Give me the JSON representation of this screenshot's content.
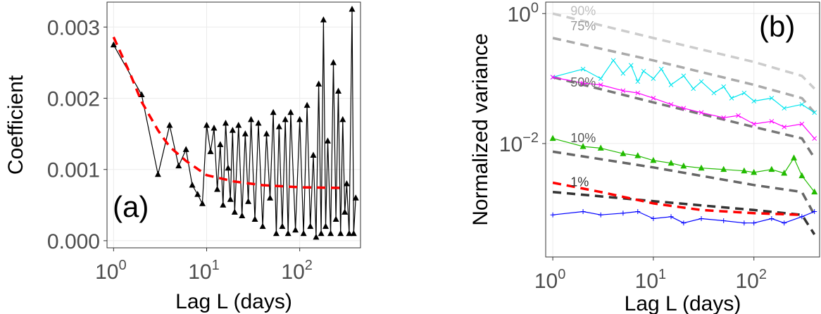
{
  "chart_data": [
    {
      "id": "a",
      "type": "line",
      "panel_label": "(a)",
      "xlabel": "Lag L (days)",
      "ylabel": "Coefficient",
      "x_scale": "log",
      "xlim": [
        0.85,
        450
      ],
      "ylim": [
        -0.0001,
        0.00335
      ],
      "x_ticks": [
        {
          "value": 1,
          "base": "10",
          "exp": "0"
        },
        {
          "value": 10,
          "base": "10",
          "exp": "1"
        },
        {
          "value": 100,
          "base": "10",
          "exp": "2"
        }
      ],
      "y_ticks": [
        {
          "value": 0.0,
          "label": "0.000"
        },
        {
          "value": 0.001,
          "label": "0.001"
        },
        {
          "value": 0.002,
          "label": "0.002"
        },
        {
          "value": 0.003,
          "label": "0.003"
        }
      ],
      "grid": true,
      "series": [
        {
          "style": "line+triangle",
          "color": "#000000",
          "points": [
            [
              1,
              0.00275
            ],
            [
              2,
              0.00205
            ],
            [
              3,
              0.00093
            ],
            [
              4,
              0.00162
            ],
            [
              5,
              0.00105
            ],
            [
              6,
              0.00128
            ],
            [
              7,
              0.00078
            ],
            [
              8,
              0.00065
            ],
            [
              9,
              0.00052
            ],
            [
              10,
              0.00162
            ],
            [
              11,
              0.00125
            ],
            [
              12,
              0.00158
            ],
            [
              13,
              0.00072
            ],
            [
              14,
              0.00135
            ],
            [
              15,
              0.0005
            ],
            [
              16,
              0.00165
            ],
            [
              17,
              0.00102
            ],
            [
              18,
              0.00058
            ],
            [
              19,
              0.00155
            ],
            [
              20,
              0.0004
            ],
            [
              22,
              0.00162
            ],
            [
              24,
              0.00035
            ],
            [
              26,
              0.0015
            ],
            [
              28,
              0.00055
            ],
            [
              30,
              0.0017
            ],
            [
              33,
              0.0003
            ],
            [
              36,
              0.00165
            ],
            [
              40,
              0.0002
            ],
            [
              44,
              0.0015
            ],
            [
              48,
              0.0006
            ],
            [
              52,
              0.0018
            ],
            [
              56,
              0.0001
            ],
            [
              60,
              0.0016
            ],
            [
              65,
              0.0002
            ],
            [
              70,
              0.0017
            ],
            [
              75,
              0.0001
            ],
            [
              80,
              0.0018
            ],
            [
              90,
              0.00015
            ],
            [
              100,
              0.0017
            ],
            [
              110,
              0.0001
            ],
            [
              120,
              0.0019
            ],
            [
              130,
              0.0002
            ],
            [
              140,
              0.0012
            ],
            [
              150,
              5e-05
            ],
            [
              160,
              0.0022
            ],
            [
              170,
              0.0001
            ],
            [
              180,
              0.0031
            ],
            [
              190,
              0.0002
            ],
            [
              200,
              0.0014
            ],
            [
              215,
              0.0001
            ],
            [
              230,
              0.0025
            ],
            [
              245,
              0.0003
            ],
            [
              260,
              0.0021
            ],
            [
              275,
              0.0001
            ],
            [
              290,
              0.0017
            ],
            [
              305,
              0.0004
            ],
            [
              320,
              0.0008
            ],
            [
              340,
              0.0001
            ],
            [
              365,
              0.00325
            ],
            [
              380,
              0.0001
            ],
            [
              400,
              0.0006
            ]
          ]
        },
        {
          "style": "dashed",
          "color": "#ff0000",
          "points": [
            [
              1,
              0.00286
            ],
            [
              1.5,
              0.00235
            ],
            [
              2,
              0.00195
            ],
            [
              3,
              0.00155
            ],
            [
              4,
              0.00132
            ],
            [
              6,
              0.00112
            ],
            [
              10,
              0.00092
            ],
            [
              20,
              0.00083
            ],
            [
              40,
              0.00078
            ],
            [
              100,
              0.00075
            ],
            [
              300,
              0.00074
            ]
          ]
        }
      ]
    },
    {
      "id": "b",
      "type": "line",
      "panel_label": "(b)",
      "xlabel": "Lag L (days)",
      "ylabel": "Normalized variance",
      "x_scale": "log",
      "y_scale": "log",
      "xlim": [
        0.85,
        450
      ],
      "ylim": [
        0.00018,
        1.5
      ],
      "x_ticks": [
        {
          "value": 1,
          "base": "10",
          "exp": "0"
        },
        {
          "value": 10,
          "base": "10",
          "exp": "1"
        },
        {
          "value": 100,
          "base": "10",
          "exp": "2"
        }
      ],
      "y_ticks": [
        {
          "value": 1,
          "base": "10",
          "exp": "0"
        },
        {
          "value": 0.01,
          "base": "10",
          "exp": "−2"
        }
      ],
      "grid": true,
      "quantile_labels": [
        {
          "text": "90%",
          "x": 1.5,
          "y": 0.95,
          "color": "#bfbfbf"
        },
        {
          "text": "75%",
          "x": 1.5,
          "y": 0.55,
          "color": "#999999"
        },
        {
          "text": "50%",
          "x": 1.5,
          "y": 0.075,
          "color": "#666666"
        },
        {
          "text": "10%",
          "x": 1.5,
          "y": 0.0105,
          "color": "#555555"
        },
        {
          "text": "1%",
          "x": 1.5,
          "y": 0.0022,
          "color": "#333333"
        }
      ],
      "series": [
        {
          "style": "dashed",
          "color": "#cccccc",
          "points": [
            [
              1,
              1.0
            ],
            [
              10,
              0.42
            ],
            [
              100,
              0.18
            ],
            [
              300,
              0.11
            ],
            [
              400,
              0.07
            ]
          ]
        },
        {
          "style": "dashed",
          "color": "#aaaaaa",
          "points": [
            [
              1,
              0.42
            ],
            [
              10,
              0.19
            ],
            [
              100,
              0.08
            ],
            [
              300,
              0.05
            ],
            [
              400,
              0.03
            ]
          ]
        },
        {
          "style": "dashed",
          "color": "#777777",
          "points": [
            [
              1,
              0.105
            ],
            [
              10,
              0.043
            ],
            [
              100,
              0.018
            ],
            [
              300,
              0.012
            ],
            [
              400,
              0.006
            ]
          ]
        },
        {
          "style": "dashed",
          "color": "#666666",
          "points": [
            [
              1,
              0.0075
            ],
            [
              10,
              0.0043
            ],
            [
              100,
              0.0023
            ],
            [
              300,
              0.0018
            ],
            [
              400,
              0.0008
            ]
          ]
        },
        {
          "style": "dashed",
          "color": "#333333",
          "points": [
            [
              1,
              0.0018
            ],
            [
              10,
              0.0013
            ],
            [
              100,
              0.00095
            ],
            [
              300,
              0.0008
            ],
            [
              400,
              0.0004
            ]
          ]
        },
        {
          "style": "line+x",
          "color": "#00e5ee",
          "points": [
            [
              1,
              0.105
            ],
            [
              2,
              0.14
            ],
            [
              3,
              0.1
            ],
            [
              4,
              0.19
            ],
            [
              5,
              0.12
            ],
            [
              6,
              0.16
            ],
            [
              7,
              0.09
            ],
            [
              8,
              0.13
            ],
            [
              10,
              0.1
            ],
            [
              12,
              0.14
            ],
            [
              15,
              0.08
            ],
            [
              20,
              0.11
            ],
            [
              25,
              0.07
            ],
            [
              30,
              0.09
            ],
            [
              40,
              0.06
            ],
            [
              50,
              0.075
            ],
            [
              60,
              0.05
            ],
            [
              80,
              0.06
            ],
            [
              100,
              0.045
            ],
            [
              150,
              0.05
            ],
            [
              200,
              0.035
            ],
            [
              300,
              0.04
            ],
            [
              400,
              0.03
            ]
          ]
        },
        {
          "style": "line+x",
          "color": "#ff00ff",
          "points": [
            [
              1,
              0.105
            ],
            [
              2,
              0.085
            ],
            [
              3,
              0.08
            ],
            [
              5,
              0.065
            ],
            [
              7,
              0.06
            ],
            [
              10,
              0.05
            ],
            [
              15,
              0.04
            ],
            [
              20,
              0.035
            ],
            [
              30,
              0.03
            ],
            [
              50,
              0.025
            ],
            [
              70,
              0.027
            ],
            [
              100,
              0.02
            ],
            [
              150,
              0.022
            ],
            [
              200,
              0.018
            ],
            [
              300,
              0.02
            ],
            [
              400,
              0.012
            ]
          ]
        },
        {
          "style": "line+triangle",
          "color": "#22bb00",
          "points": [
            [
              1,
              0.012
            ],
            [
              2,
              0.009
            ],
            [
              3,
              0.0085
            ],
            [
              5,
              0.007
            ],
            [
              7,
              0.0065
            ],
            [
              10,
              0.0055
            ],
            [
              15,
              0.005
            ],
            [
              20,
              0.0045
            ],
            [
              30,
              0.0042
            ],
            [
              50,
              0.004
            ],
            [
              80,
              0.0038
            ],
            [
              100,
              0.0036
            ],
            [
              150,
              0.004
            ],
            [
              200,
              0.0035
            ],
            [
              250,
              0.006
            ],
            [
              300,
              0.0032
            ],
            [
              400,
              0.0018
            ]
          ]
        },
        {
          "style": "line+plus",
          "color": "#0000ff",
          "points": [
            [
              1,
              0.0008
            ],
            [
              2,
              0.0009
            ],
            [
              3,
              0.0008
            ],
            [
              5,
              0.00085
            ],
            [
              7,
              0.0009
            ],
            [
              10,
              0.0007
            ],
            [
              15,
              0.00075
            ],
            [
              20,
              0.0006
            ],
            [
              30,
              0.0007
            ],
            [
              50,
              0.00065
            ],
            [
              80,
              0.0006
            ],
            [
              100,
              0.0006
            ],
            [
              150,
              0.0007
            ],
            [
              200,
              0.0006
            ],
            [
              300,
              0.00075
            ],
            [
              400,
              0.0009
            ]
          ]
        },
        {
          "style": "dashed",
          "color": "#ff0000",
          "points": [
            [
              1,
              0.0025
            ],
            [
              3,
              0.0018
            ],
            [
              10,
              0.0012
            ],
            [
              30,
              0.00095
            ],
            [
              100,
              0.00085
            ],
            [
              300,
              0.0008
            ]
          ]
        }
      ]
    }
  ]
}
